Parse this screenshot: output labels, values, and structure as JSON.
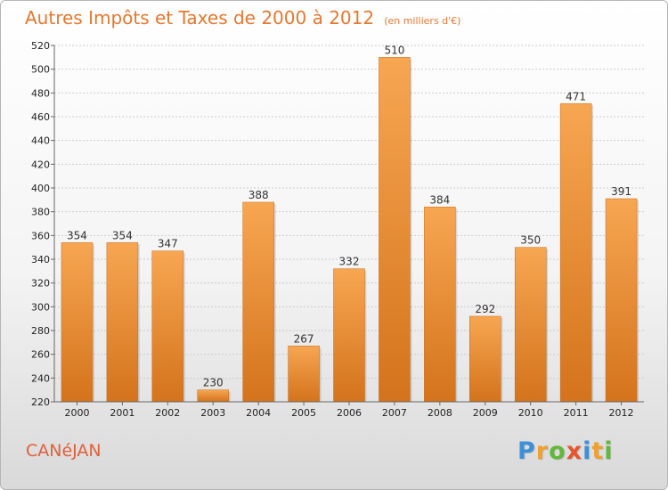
{
  "chart_data": {
    "type": "bar",
    "title": "Autres Impôts et Taxes de 2000 à 2012",
    "subtitle": "(en milliers d'€)",
    "xlabel": "",
    "ylabel": "",
    "categories": [
      "2000",
      "2001",
      "2002",
      "2003",
      "2004",
      "2005",
      "2006",
      "2007",
      "2008",
      "2009",
      "2010",
      "2011",
      "2012"
    ],
    "values": [
      354,
      354,
      347,
      230,
      388,
      267,
      332,
      510,
      384,
      292,
      350,
      471,
      391
    ],
    "ylim": [
      220,
      520
    ],
    "yticks": [
      220,
      240,
      260,
      280,
      300,
      320,
      340,
      360,
      380,
      400,
      420,
      440,
      460,
      480,
      500,
      520
    ],
    "grid": true,
    "bar_color": "#e8802f",
    "legend": "none"
  },
  "footer": {
    "place": "CANéJAN",
    "logo": [
      "P",
      "r",
      "o",
      "x",
      "i",
      "t",
      "i"
    ],
    "logo_colors": [
      "#3d8fd8",
      "#f0a030",
      "#63b83a",
      "#e8542c",
      "#3d8fd8",
      "#f0a030",
      "#63b83a"
    ]
  }
}
